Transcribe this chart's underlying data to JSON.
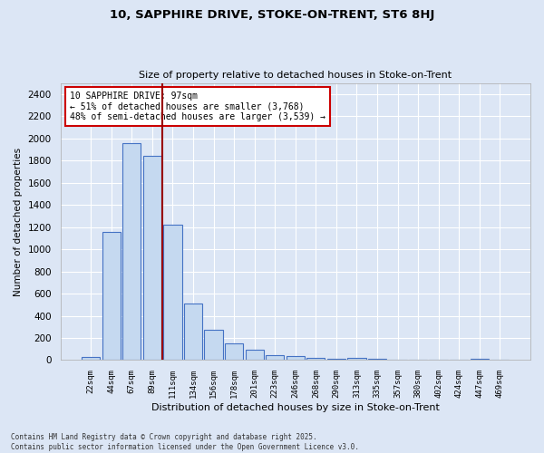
{
  "title1": "10, SAPPHIRE DRIVE, STOKE-ON-TRENT, ST6 8HJ",
  "title2": "Size of property relative to detached houses in Stoke-on-Trent",
  "xlabel": "Distribution of detached houses by size in Stoke-on-Trent",
  "ylabel": "Number of detached properties",
  "categories": [
    "22sqm",
    "44sqm",
    "67sqm",
    "89sqm",
    "111sqm",
    "134sqm",
    "156sqm",
    "178sqm",
    "201sqm",
    "223sqm",
    "246sqm",
    "268sqm",
    "290sqm",
    "313sqm",
    "335sqm",
    "357sqm",
    "380sqm",
    "402sqm",
    "424sqm",
    "447sqm",
    "469sqm"
  ],
  "values": [
    28,
    1160,
    1960,
    1845,
    1220,
    510,
    270,
    155,
    90,
    48,
    38,
    22,
    12,
    18,
    12,
    5,
    3,
    2,
    2,
    15,
    2
  ],
  "bar_color": "#c5d9f0",
  "bar_edge_color": "#4472c4",
  "bg_color": "#dce6f5",
  "grid_color": "#ffffff",
  "red_line_index": 3,
  "annotation_text": "10 SAPPHIRE DRIVE: 97sqm\n← 51% of detached houses are smaller (3,768)\n48% of semi-detached houses are larger (3,539) →",
  "annotation_box_color": "#ffffff",
  "annotation_box_edge_color": "#cc0000",
  "ylim": [
    0,
    2500
  ],
  "yticks": [
    0,
    200,
    400,
    600,
    800,
    1000,
    1200,
    1400,
    1600,
    1800,
    2000,
    2200,
    2400
  ],
  "footer1": "Contains HM Land Registry data © Crown copyright and database right 2025.",
  "footer2": "Contains public sector information licensed under the Open Government Licence v3.0."
}
